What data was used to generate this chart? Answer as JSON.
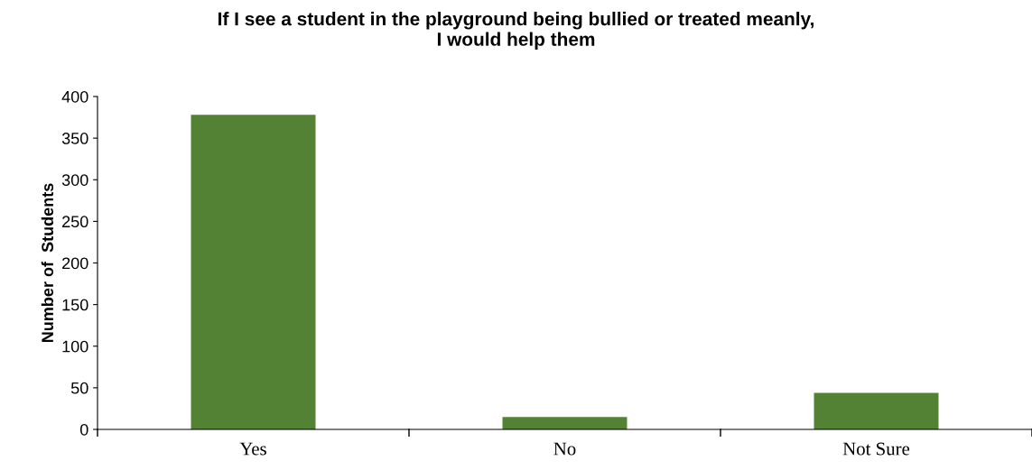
{
  "chart_data": {
    "type": "bar",
    "title": "If I see a student in the playground being bullied or treated meanly,\nI would help them",
    "ylabel": "Number of  Students",
    "categories": [
      "Yes",
      "No",
      "Not Sure"
    ],
    "values": [
      378,
      15,
      44
    ],
    "color": "#548235",
    "ylim": [
      0,
      400
    ],
    "yticks": [
      0,
      50,
      100,
      150,
      200,
      250,
      300,
      350,
      400
    ],
    "grid": false,
    "legend": false
  }
}
